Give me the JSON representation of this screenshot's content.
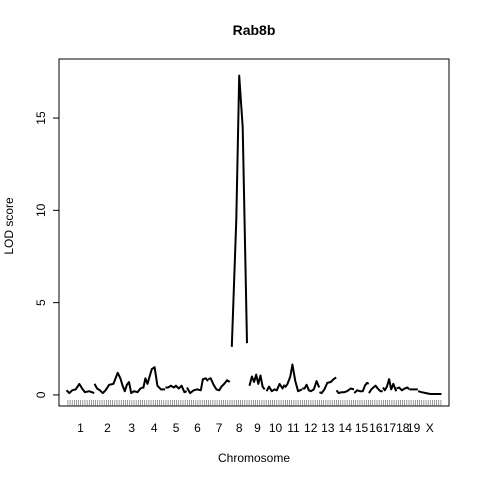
{
  "chart_data": {
    "type": "line",
    "title": "Rab8b",
    "xlabel": "Chromosome",
    "ylabel": "LOD score",
    "ylim": [
      -0.6,
      18.2
    ],
    "y_ticks": [
      0,
      5,
      10,
      15
    ],
    "grid": false,
    "legend": "none",
    "line_color": "#000000",
    "chromosomes": [
      {
        "name": "1",
        "start": 0,
        "length": 197
      },
      {
        "name": "2",
        "start": 197,
        "length": 182
      },
      {
        "name": "3",
        "start": 379,
        "length": 160
      },
      {
        "name": "4",
        "start": 539,
        "length": 156
      },
      {
        "name": "5",
        "start": 695,
        "length": 152
      },
      {
        "name": "6",
        "start": 847,
        "length": 150
      },
      {
        "name": "7",
        "start": 997,
        "length": 153
      },
      {
        "name": "8",
        "start": 1150,
        "length": 131
      },
      {
        "name": "9",
        "start": 1281,
        "length": 125
      },
      {
        "name": "10",
        "start": 1406,
        "length": 130
      },
      {
        "name": "11",
        "start": 1536,
        "length": 122
      },
      {
        "name": "12",
        "start": 1658,
        "length": 121
      },
      {
        "name": "13",
        "start": 1779,
        "length": 120
      },
      {
        "name": "14",
        "start": 1899,
        "length": 125
      },
      {
        "name": "15",
        "start": 2024,
        "length": 104
      },
      {
        "name": "16",
        "start": 2128,
        "length": 98
      },
      {
        "name": "17",
        "start": 2226,
        "length": 95
      },
      {
        "name": "18",
        "start": 2321,
        "length": 91
      },
      {
        "name": "19",
        "start": 2412,
        "length": 61
      },
      {
        "name": "X",
        "start": 2473,
        "length": 166
      }
    ],
    "series": [
      {
        "chr": "1",
        "points": [
          [
            0,
            0.25
          ],
          [
            20,
            0.1
          ],
          [
            40,
            0.25
          ],
          [
            65,
            0.3
          ],
          [
            90,
            0.6
          ],
          [
            110,
            0.35
          ],
          [
            130,
            0.15
          ],
          [
            160,
            0.2
          ],
          [
            195,
            0.1
          ]
        ]
      },
      {
        "chr": "2",
        "points": [
          [
            197,
            0.6
          ],
          [
            215,
            0.35
          ],
          [
            235,
            0.25
          ],
          [
            255,
            0.1
          ],
          [
            275,
            0.25
          ],
          [
            300,
            0.55
          ],
          [
            330,
            0.6
          ],
          [
            360,
            1.2
          ],
          [
            379,
            0.9
          ]
        ]
      },
      {
        "chr": "3",
        "points": [
          [
            379,
            0.9
          ],
          [
            395,
            0.5
          ],
          [
            410,
            0.2
          ],
          [
            425,
            0.55
          ],
          [
            440,
            0.7
          ],
          [
            455,
            0.1
          ],
          [
            475,
            0.2
          ],
          [
            500,
            0.15
          ],
          [
            520,
            0.35
          ],
          [
            538,
            0.4
          ]
        ]
      },
      {
        "chr": "4",
        "points": [
          [
            540,
            0.35
          ],
          [
            555,
            0.9
          ],
          [
            570,
            0.6
          ],
          [
            585,
            1.0
          ],
          [
            600,
            1.4
          ],
          [
            620,
            1.5
          ],
          [
            640,
            0.5
          ],
          [
            665,
            0.3
          ],
          [
            694,
            0.3
          ]
        ]
      },
      {
        "chr": "5",
        "points": [
          [
            696,
            0.4
          ],
          [
            715,
            0.4
          ],
          [
            735,
            0.5
          ],
          [
            755,
            0.4
          ],
          [
            770,
            0.5
          ],
          [
            790,
            0.35
          ],
          [
            810,
            0.5
          ],
          [
            830,
            0.15
          ],
          [
            846,
            0.2
          ]
        ]
      },
      {
        "chr": "6",
        "points": [
          [
            848,
            0.4
          ],
          [
            870,
            0.1
          ],
          [
            895,
            0.25
          ],
          [
            920,
            0.3
          ],
          [
            945,
            0.25
          ],
          [
            960,
            0.85
          ],
          [
            980,
            0.9
          ],
          [
            996,
            0.75
          ]
        ]
      },
      {
        "chr": "7",
        "points": [
          [
            998,
            0.85
          ],
          [
            1015,
            0.9
          ],
          [
            1035,
            0.55
          ],
          [
            1055,
            0.3
          ],
          [
            1075,
            0.25
          ],
          [
            1090,
            0.45
          ],
          [
            1110,
            0.6
          ],
          [
            1130,
            0.8
          ],
          [
            1149,
            0.7
          ]
        ]
      },
      {
        "chr": "8",
        "points": [
          [
            1163,
            2.6
          ],
          [
            1195,
            9.5
          ],
          [
            1215,
            17.3
          ],
          [
            1240,
            14.5
          ],
          [
            1270,
            2.8
          ]
        ]
      },
      {
        "chr": "9",
        "points": [
          [
            1288,
            0.5
          ],
          [
            1305,
            1.0
          ],
          [
            1320,
            0.7
          ],
          [
            1335,
            1.1
          ],
          [
            1350,
            0.6
          ],
          [
            1365,
            1.05
          ],
          [
            1380,
            0.45
          ],
          [
            1395,
            0.3
          ]
        ]
      },
      {
        "chr": "10",
        "points": [
          [
            1408,
            0.2
          ],
          [
            1425,
            0.45
          ],
          [
            1445,
            0.2
          ],
          [
            1465,
            0.3
          ],
          [
            1480,
            0.25
          ],
          [
            1500,
            0.6
          ],
          [
            1520,
            0.35
          ],
          [
            1535,
            0.55
          ]
        ]
      },
      {
        "chr": "11",
        "points": [
          [
            1537,
            0.4
          ],
          [
            1555,
            0.6
          ],
          [
            1575,
            1.0
          ],
          [
            1590,
            1.65
          ],
          [
            1610,
            0.75
          ],
          [
            1630,
            0.2
          ],
          [
            1657,
            0.3
          ]
        ]
      },
      {
        "chr": "12",
        "points": [
          [
            1659,
            0.35
          ],
          [
            1675,
            0.35
          ],
          [
            1690,
            0.55
          ],
          [
            1705,
            0.25
          ],
          [
            1720,
            0.2
          ],
          [
            1740,
            0.3
          ],
          [
            1760,
            0.75
          ],
          [
            1778,
            0.4
          ]
        ]
      },
      {
        "chr": "13",
        "points": [
          [
            1780,
            0.15
          ],
          [
            1795,
            0.1
          ],
          [
            1815,
            0.3
          ],
          [
            1835,
            0.65
          ],
          [
            1860,
            0.7
          ],
          [
            1880,
            0.85
          ],
          [
            1898,
            0.95
          ]
        ]
      },
      {
        "chr": "14",
        "points": [
          [
            1900,
            0.25
          ],
          [
            1915,
            0.1
          ],
          [
            1935,
            0.15
          ],
          [
            1955,
            0.15
          ],
          [
            1975,
            0.2
          ],
          [
            2000,
            0.35
          ],
          [
            2023,
            0.3
          ]
        ]
      },
      {
        "chr": "15",
        "points": [
          [
            2025,
            0.1
          ],
          [
            2045,
            0.25
          ],
          [
            2065,
            0.2
          ],
          [
            2085,
            0.2
          ],
          [
            2100,
            0.5
          ],
          [
            2115,
            0.65
          ],
          [
            2127,
            0.6
          ]
        ]
      },
      {
        "chr": "16",
        "points": [
          [
            2129,
            0.1
          ],
          [
            2145,
            0.3
          ],
          [
            2160,
            0.4
          ],
          [
            2175,
            0.5
          ],
          [
            2190,
            0.35
          ],
          [
            2210,
            0.2
          ],
          [
            2225,
            0.2
          ]
        ]
      },
      {
        "chr": "17",
        "points": [
          [
            2227,
            0.4
          ],
          [
            2240,
            0.25
          ],
          [
            2255,
            0.45
          ],
          [
            2270,
            0.85
          ],
          [
            2285,
            0.3
          ],
          [
            2300,
            0.6
          ],
          [
            2320,
            0.2
          ]
        ]
      },
      {
        "chr": "18",
        "points": [
          [
            2322,
            0.35
          ],
          [
            2340,
            0.4
          ],
          [
            2360,
            0.25
          ],
          [
            2380,
            0.35
          ],
          [
            2400,
            0.4
          ],
          [
            2411,
            0.3
          ]
        ]
      },
      {
        "chr": "19",
        "points": [
          [
            2413,
            0.3
          ],
          [
            2430,
            0.3
          ],
          [
            2450,
            0.3
          ],
          [
            2472,
            0.3
          ]
        ]
      },
      {
        "chr": "X",
        "points": [
          [
            2474,
            0.2
          ],
          [
            2500,
            0.15
          ],
          [
            2530,
            0.1
          ],
          [
            2560,
            0.05
          ],
          [
            2600,
            0.05
          ],
          [
            2639,
            0.05
          ]
        ]
      }
    ],
    "markers": [
      10,
      25,
      40,
      55,
      70,
      85,
      100,
      115,
      130,
      145,
      160,
      175,
      190,
      205,
      220,
      235,
      250,
      265,
      280,
      295,
      310,
      325,
      340,
      355,
      370,
      385,
      400,
      415,
      430,
      445,
      460,
      475,
      490,
      505,
      520,
      535,
      550,
      565,
      580,
      595,
      610,
      625,
      640,
      655,
      670,
      685,
      700,
      715,
      730,
      745,
      760,
      775,
      790,
      805,
      820,
      835,
      850,
      865,
      880,
      895,
      910,
      925,
      940,
      955,
      970,
      985,
      1000,
      1015,
      1030,
      1045,
      1060,
      1075,
      1090,
      1105,
      1120,
      1135,
      1150,
      1165,
      1180,
      1195,
      1210,
      1225,
      1240,
      1255,
      1270,
      1285,
      1300,
      1315,
      1330,
      1345,
      1360,
      1375,
      1390,
      1405,
      1420,
      1435,
      1450,
      1465,
      1480,
      1495,
      1510,
      1525,
      1540,
      1555,
      1570,
      1585,
      1600,
      1615,
      1630,
      1645,
      1660,
      1675,
      1690,
      1705,
      1720,
      1735,
      1750,
      1765,
      1780,
      1795,
      1810,
      1825,
      1840,
      1855,
      1870,
      1885,
      1900,
      1915,
      1930,
      1945,
      1960,
      1975,
      1990,
      2005,
      2020,
      2035,
      2050,
      2065,
      2080,
      2095,
      2110,
      2125,
      2140,
      2155,
      2170,
      2185,
      2200,
      2215,
      2230,
      2245,
      2260,
      2275,
      2290,
      2305,
      2320,
      2335,
      2350,
      2365,
      2380,
      2395,
      2410,
      2425,
      2440,
      2455,
      2470,
      2485,
      2500,
      2515,
      2530,
      2545,
      2560,
      2575,
      2590,
      2605,
      2620,
      2635
    ]
  }
}
